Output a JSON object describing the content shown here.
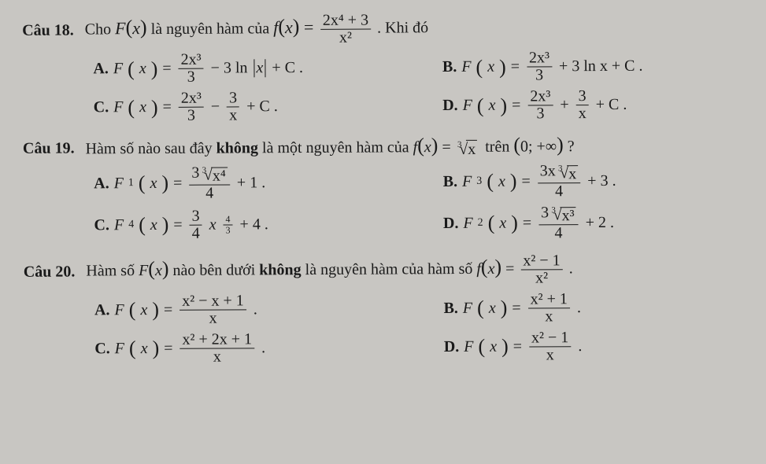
{
  "q18": {
    "label": "Câu 18.",
    "stem_pre": "Cho",
    "stem_F": "F",
    "stem_mid1": "là nguyên hàm của",
    "stem_f": "f",
    "stem_frac_num": "2x⁴ + 3",
    "stem_frac_den": "x²",
    "stem_post": ". Khi đó",
    "A": {
      "label": "A.",
      "F": "F",
      "n1": "2x³",
      "d1": "3",
      "mid": " − 3 ln",
      "abs": "x",
      "tail": " + C ."
    },
    "B": {
      "label": "B.",
      "F": "F",
      "n1": "2x³",
      "d1": "3",
      "tail": " + 3 ln x + C ."
    },
    "C": {
      "label": "C.",
      "F": "F",
      "n1": "2x³",
      "d1": "3",
      "n2": "3",
      "d2": "x",
      "tail": " + C ."
    },
    "D": {
      "label": "D.",
      "F": "F",
      "n1": "2x³",
      "d1": "3",
      "n2": "3",
      "d2": "x",
      "tail": " + C ."
    }
  },
  "q19": {
    "label": "Câu 19.",
    "stem_pre": "Hàm số nào sau đây",
    "stem_bold": "không",
    "stem_mid": "là một nguyên hàm của",
    "stem_f": "f",
    "root_idx": "3",
    "root_rad": "x",
    "stem_on": "trên",
    "interval": "(0; +∞)",
    "q": "?",
    "A": {
      "label": "A.",
      "Fsub": "1",
      "num_coef": "3",
      "num_idx": "3",
      "num_rad": "x⁴",
      "den": "4",
      "tail": " + 1 ."
    },
    "B": {
      "label": "B.",
      "Fsub": "3",
      "num_coef": "3x",
      "num_idx": "3",
      "num_rad": "x",
      "den": "4",
      "tail": " + 3 ."
    },
    "C": {
      "label": "C.",
      "Fsub": "4",
      "n1": "3",
      "d1": "4",
      "xexp_num": "4",
      "xexp_den": "3",
      "tail": " + 4 ."
    },
    "D": {
      "label": "D.",
      "Fsub": "2",
      "num_coef": "3",
      "num_idx": "3",
      "num_rad": "x³",
      "den": "4",
      "tail": " + 2 ."
    }
  },
  "q20": {
    "label": "Câu 20.",
    "stem_pre": "Hàm số",
    "stem_F": "F",
    "stem_mid1": "nào bên dưới",
    "stem_bold": "không",
    "stem_mid2": "là nguyên hàm của hàm số",
    "stem_f": "f",
    "stem_num": "x² − 1",
    "stem_den": "x²",
    "dot": ".",
    "A": {
      "label": "A.",
      "F": "F",
      "num": "x² − x + 1",
      "den": "x",
      "tail": " ."
    },
    "B": {
      "label": "B.",
      "F": "F",
      "num": "x² + 1",
      "den": "x",
      "tail": " ."
    },
    "C": {
      "label": "C.",
      "F": "F",
      "num": "x² + 2x + 1",
      "den": "x",
      "tail": " ."
    },
    "D": {
      "label": "D.",
      "F": "F",
      "num": "x² − 1",
      "den": "x",
      "tail": " ."
    }
  }
}
